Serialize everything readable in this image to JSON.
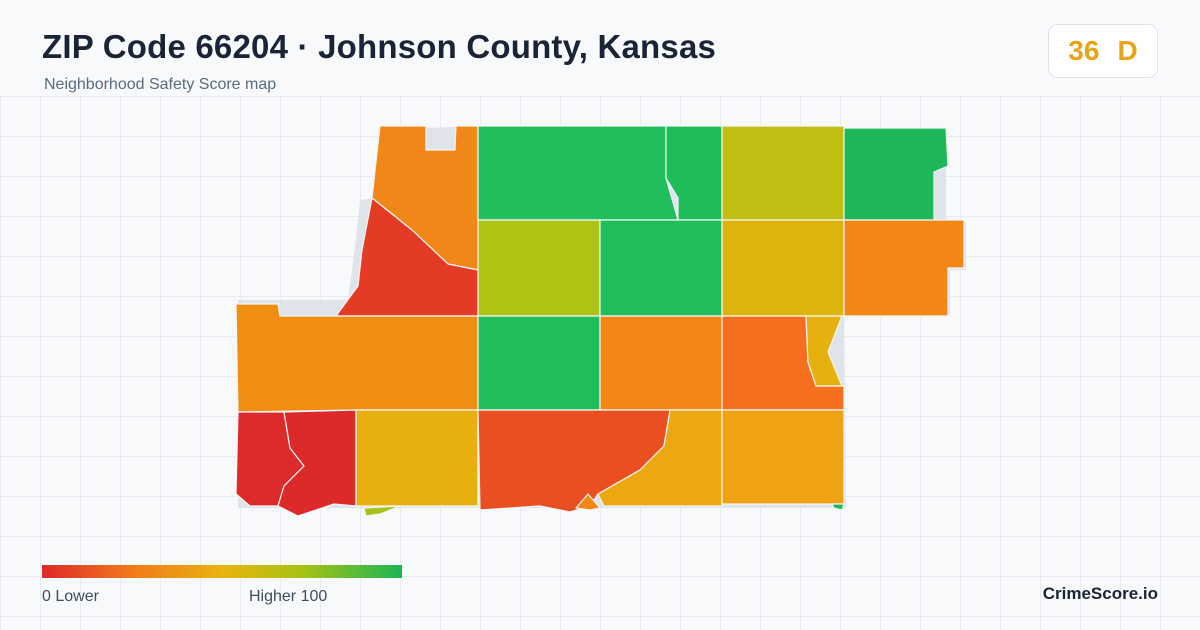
{
  "header": {
    "title": "ZIP Code 66204 · Johnson County, Kansas",
    "subtitle": "Neighborhood Safety Score map"
  },
  "score": {
    "value": "36",
    "grade": "D",
    "color": "#e8a31a"
  },
  "legend": {
    "low_label": "0  Lower",
    "high_label": "Higher  100",
    "gradient": [
      "#dd2a2a",
      "#f07a1a",
      "#e8b40e",
      "#a8c214",
      "#1cb554"
    ]
  },
  "brand": "CrimeScore.io",
  "colors": {
    "background": "#f7f9fb",
    "grid": "#e6ebf0",
    "title": "#1a2436"
  }
}
